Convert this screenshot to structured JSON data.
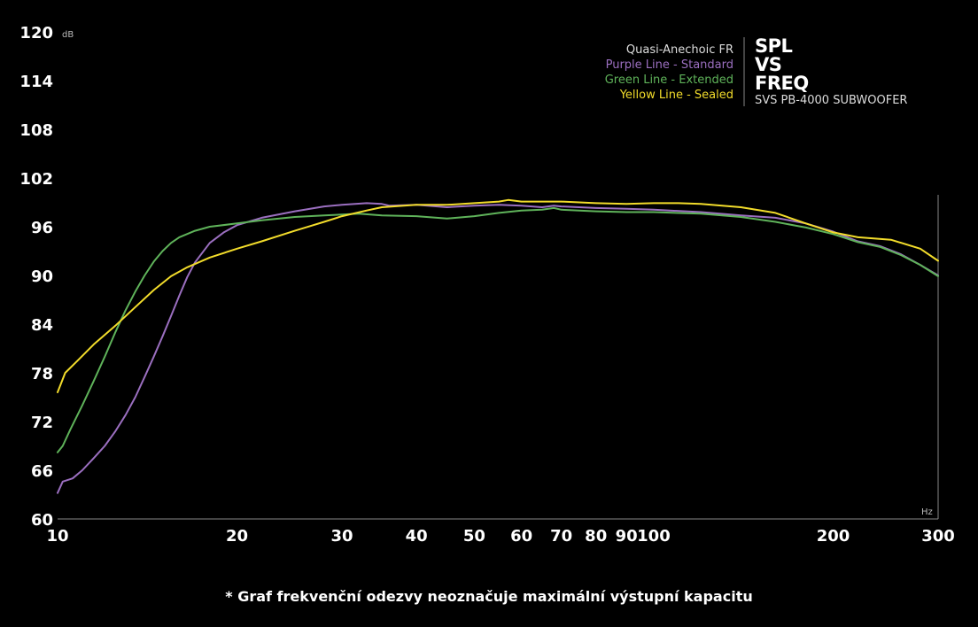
{
  "chart_data": {
    "type": "line",
    "x_scale": "log",
    "xlim": [
      10,
      300
    ],
    "ylim": [
      60,
      120
    ],
    "y_unit": "dB",
    "x_unit": "Hz",
    "y_ticks": [
      120,
      114,
      108,
      102,
      96,
      90,
      84,
      78,
      72,
      66,
      60
    ],
    "x_ticks": [
      10,
      20,
      30,
      40,
      50,
      60,
      70,
      80,
      90,
      100,
      200,
      300
    ],
    "grid": false,
    "legend_position": "top-right",
    "legend_title": "Quasi-Anechoic FR",
    "series": [
      {
        "name": "Purple Line - Standard",
        "color": "#9b6fc0",
        "points": [
          [
            10,
            63.2
          ],
          [
            10.2,
            64.6
          ],
          [
            10.6,
            65
          ],
          [
            11,
            66
          ],
          [
            11.5,
            67.5
          ],
          [
            12,
            69
          ],
          [
            12.5,
            70.8
          ],
          [
            13,
            72.8
          ],
          [
            13.5,
            75
          ],
          [
            14,
            77.5
          ],
          [
            14.5,
            80
          ],
          [
            15,
            82.5
          ],
          [
            15.5,
            85
          ],
          [
            16,
            87.5
          ],
          [
            16.5,
            89.8
          ],
          [
            17,
            91.6
          ],
          [
            18,
            94
          ],
          [
            19,
            95.3
          ],
          [
            20,
            96.2
          ],
          [
            22,
            97.1
          ],
          [
            25,
            97.9
          ],
          [
            28,
            98.5
          ],
          [
            30,
            98.7
          ],
          [
            33,
            98.9
          ],
          [
            35,
            98.8
          ],
          [
            36,
            98.6
          ],
          [
            40,
            98.7
          ],
          [
            45,
            98.4
          ],
          [
            50,
            98.6
          ],
          [
            55,
            98.7
          ],
          [
            60,
            98.6
          ],
          [
            65,
            98.4
          ],
          [
            68,
            98.6
          ],
          [
            70,
            98.5
          ],
          [
            80,
            98.3
          ],
          [
            90,
            98.2
          ],
          [
            100,
            98.1
          ],
          [
            120,
            97.8
          ],
          [
            140,
            97.4
          ],
          [
            160,
            97.1
          ],
          [
            180,
            96.4
          ],
          [
            200,
            95.4
          ],
          [
            220,
            94.2
          ],
          [
            240,
            93.6
          ],
          [
            260,
            92.6
          ],
          [
            280,
            91.3
          ],
          [
            300,
            90
          ]
        ]
      },
      {
        "name": "Green Line - Extended",
        "color": "#5fb35a",
        "points": [
          [
            10,
            68.2
          ],
          [
            10.2,
            69
          ],
          [
            10.5,
            71
          ],
          [
            11,
            74
          ],
          [
            11.5,
            77
          ],
          [
            12,
            80
          ],
          [
            12.5,
            83
          ],
          [
            13,
            85.7
          ],
          [
            13.5,
            88
          ],
          [
            14,
            90
          ],
          [
            14.5,
            91.7
          ],
          [
            15,
            93
          ],
          [
            15.5,
            94
          ],
          [
            16,
            94.7
          ],
          [
            17,
            95.5
          ],
          [
            18,
            96
          ],
          [
            20,
            96.4
          ],
          [
            22,
            96.8
          ],
          [
            25,
            97.2
          ],
          [
            28,
            97.4
          ],
          [
            30,
            97.5
          ],
          [
            32,
            97.6
          ],
          [
            35,
            97.4
          ],
          [
            40,
            97.3
          ],
          [
            45,
            97
          ],
          [
            50,
            97.3
          ],
          [
            55,
            97.7
          ],
          [
            60,
            98
          ],
          [
            65,
            98.1
          ],
          [
            68,
            98.3
          ],
          [
            70,
            98.1
          ],
          [
            80,
            97.9
          ],
          [
            90,
            97.8
          ],
          [
            100,
            97.8
          ],
          [
            120,
            97.6
          ],
          [
            140,
            97.2
          ],
          [
            160,
            96.6
          ],
          [
            180,
            95.9
          ],
          [
            200,
            95.1
          ],
          [
            220,
            94.1
          ],
          [
            240,
            93.5
          ],
          [
            260,
            92.5
          ],
          [
            280,
            91.3
          ],
          [
            300,
            89.9
          ]
        ]
      },
      {
        "name": "Yellow Line - Sealed",
        "color": "#f2dc2b",
        "points": [
          [
            10,
            75.6
          ],
          [
            10.3,
            78
          ],
          [
            10.8,
            79.5
          ],
          [
            11.5,
            81.5
          ],
          [
            12.5,
            83.8
          ],
          [
            13.5,
            86.1
          ],
          [
            14.5,
            88.2
          ],
          [
            15.5,
            89.9
          ],
          [
            16.5,
            91
          ],
          [
            18,
            92.2
          ],
          [
            20,
            93.3
          ],
          [
            22,
            94.2
          ],
          [
            25,
            95.5
          ],
          [
            28,
            96.6
          ],
          [
            30,
            97.3
          ],
          [
            33,
            98
          ],
          [
            35,
            98.4
          ],
          [
            40,
            98.7
          ],
          [
            45,
            98.7
          ],
          [
            50,
            98.9
          ],
          [
            55,
            99.1
          ],
          [
            57,
            99.3
          ],
          [
            60,
            99.1
          ],
          [
            70,
            99.1
          ],
          [
            80,
            98.9
          ],
          [
            90,
            98.8
          ],
          [
            100,
            98.9
          ],
          [
            110,
            98.9
          ],
          [
            120,
            98.8
          ],
          [
            140,
            98.4
          ],
          [
            160,
            97.7
          ],
          [
            180,
            96.4
          ],
          [
            200,
            95.3
          ],
          [
            220,
            94.7
          ],
          [
            250,
            94.4
          ],
          [
            280,
            93.3
          ],
          [
            300,
            91.8
          ]
        ]
      }
    ]
  },
  "brand": {
    "line1": "SPL",
    "line2": "VS",
    "line3": "FREQ",
    "subtitle": "SVS PB-4000 SUBWOOFER"
  },
  "footnote": "* Graf frekvenční odezvy neoznačuje maximální výstupní kapacitu",
  "colors": {
    "background": "#000000",
    "axis": "#888888",
    "legend_title": "#dddddd"
  }
}
